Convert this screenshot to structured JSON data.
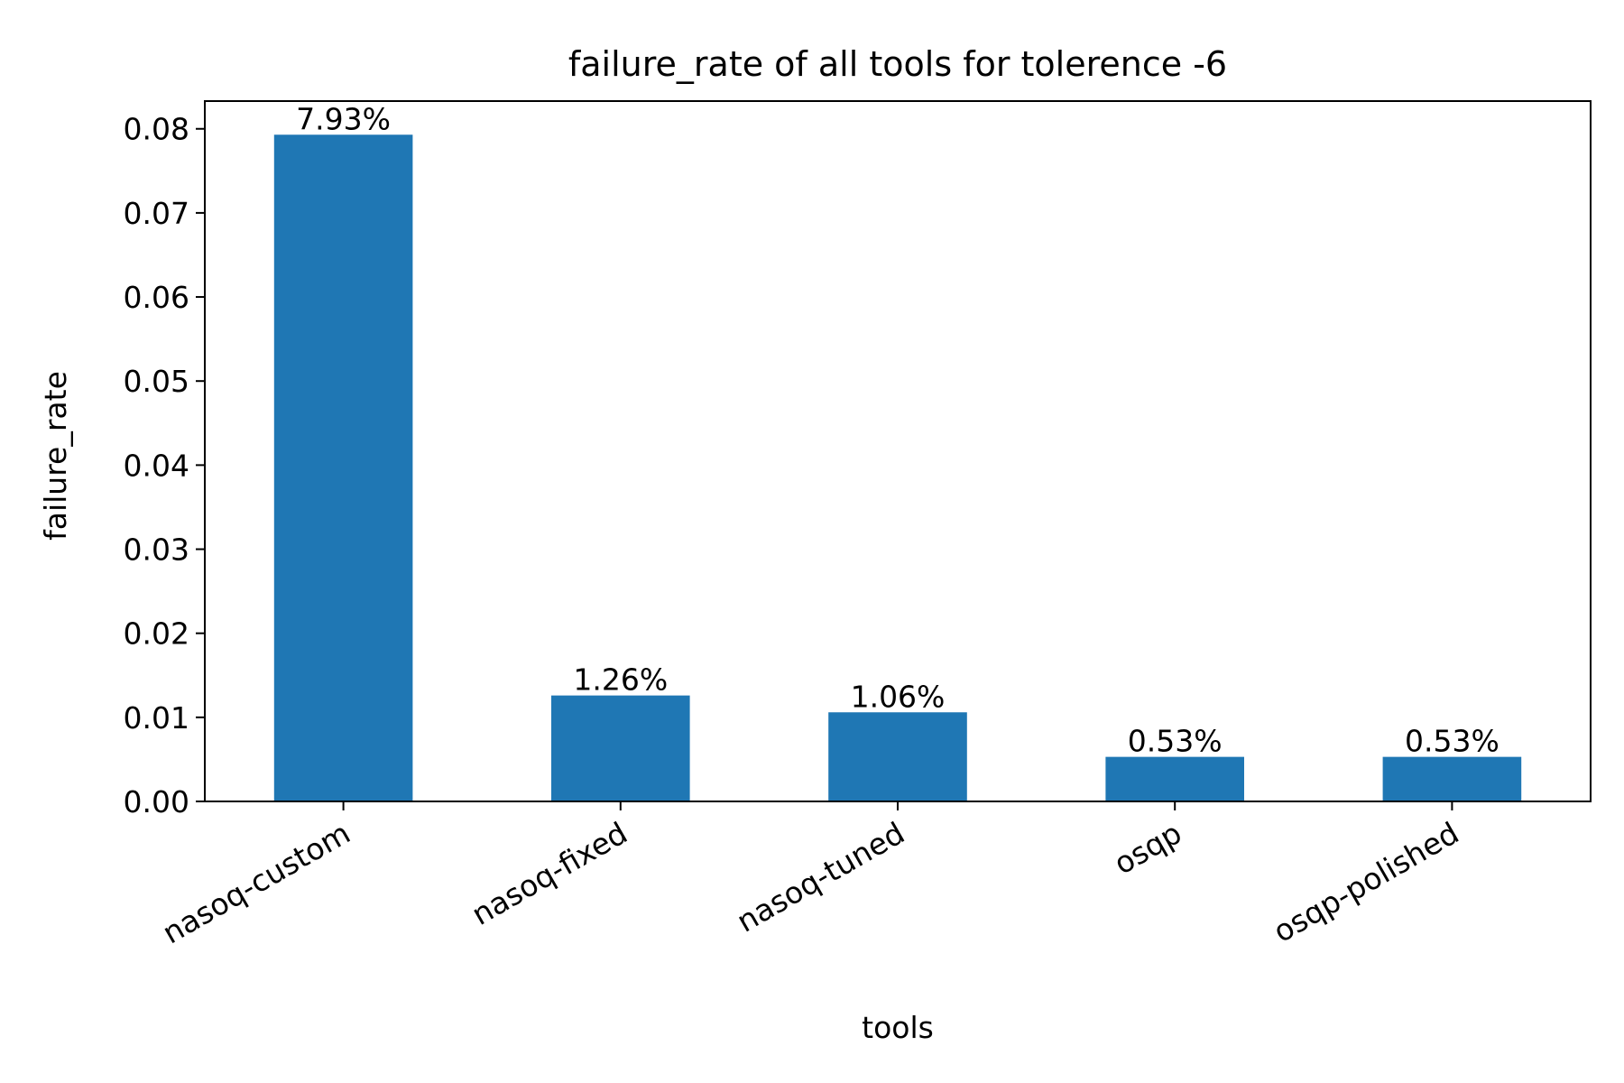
{
  "chart_data": {
    "type": "bar",
    "title": "failure_rate of all tools for tolerence -6",
    "xlabel": "tools",
    "ylabel": "failure_rate",
    "categories": [
      "nasoq-custom",
      "nasoq-fixed",
      "nasoq-tuned",
      "osqp",
      "osqp-polished"
    ],
    "values": [
      0.0793,
      0.0126,
      0.0106,
      0.0053,
      0.0053
    ],
    "data_labels": [
      "7.93%",
      "1.26%",
      "1.06%",
      "0.53%",
      "0.53%"
    ],
    "yticks": [
      "0.00",
      "0.01",
      "0.02",
      "0.03",
      "0.04",
      "0.05",
      "0.06",
      "0.07",
      "0.08"
    ],
    "ylim": [
      0,
      0.0833
    ],
    "grid": false,
    "legend": "none",
    "bar_color": "#1f77b4"
  }
}
